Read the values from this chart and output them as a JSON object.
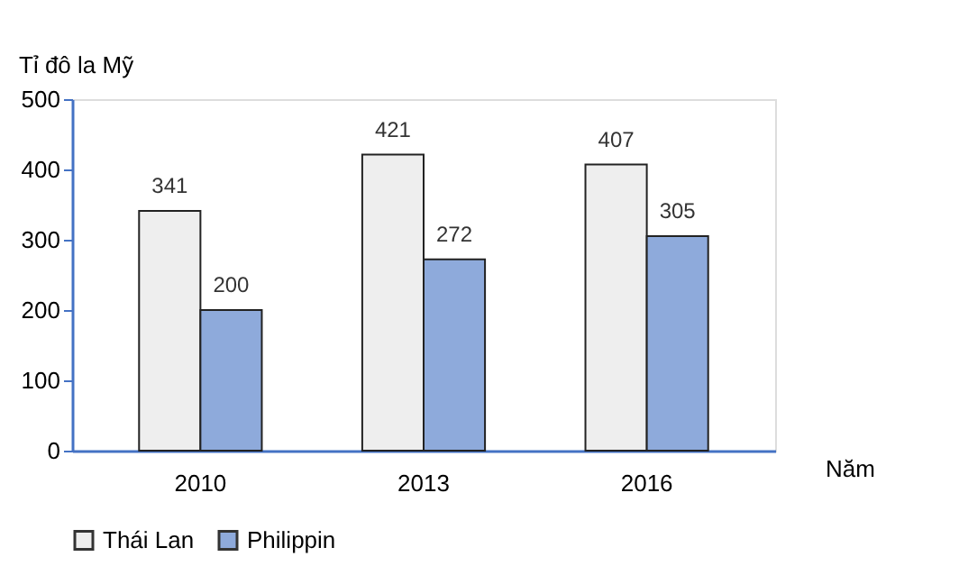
{
  "chart_data": {
    "type": "bar",
    "ylabel": "Tỉ đô la Mỹ",
    "xlabel": "Năm",
    "categories": [
      "2010",
      "2013",
      "2016"
    ],
    "series": [
      {
        "name": "Thái Lan",
        "color": "#eeeeee",
        "values": [
          341,
          421,
          407
        ]
      },
      {
        "name": "Philippin",
        "color": "#8eaadb",
        "values": [
          200,
          272,
          305
        ]
      }
    ],
    "ylim": [
      0,
      500
    ],
    "yticks": [
      0,
      100,
      200,
      300,
      400,
      500
    ],
    "grid": false,
    "legend": "bottom",
    "data_labels": true
  }
}
